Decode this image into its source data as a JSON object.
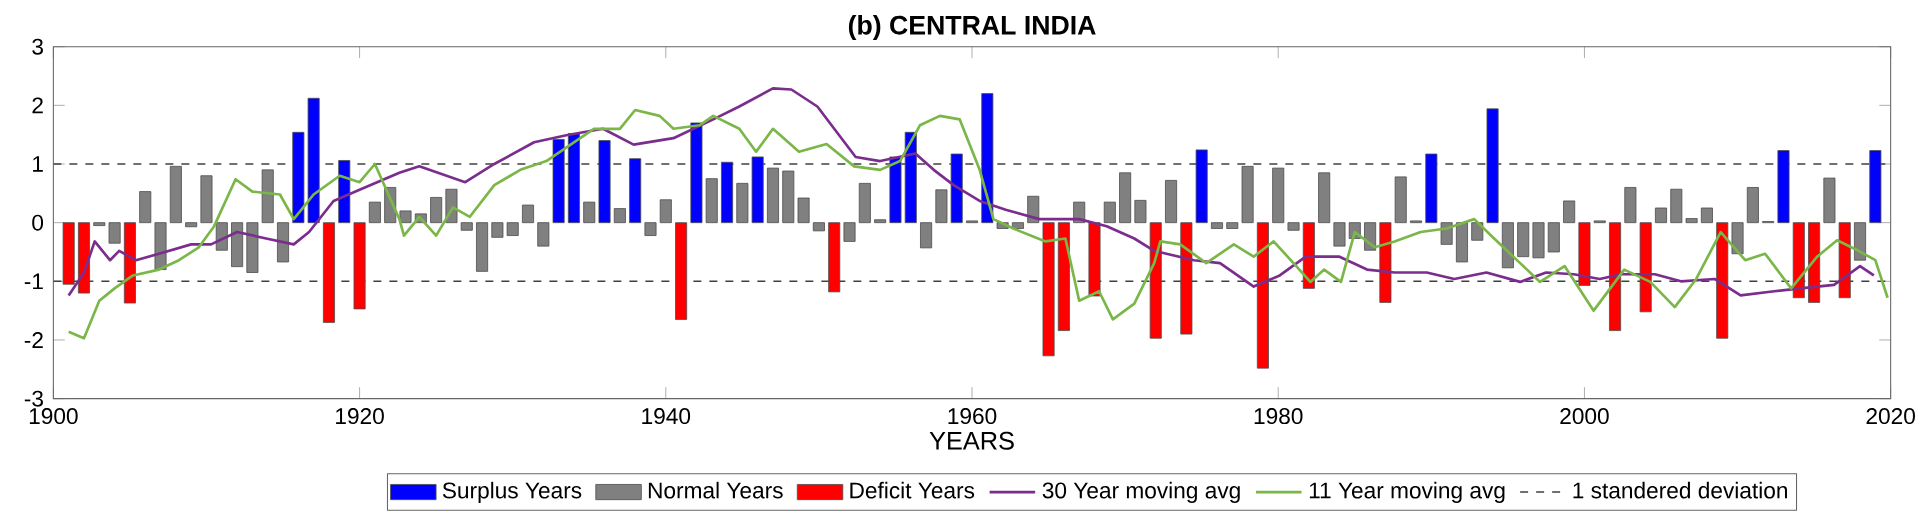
{
  "chart_data": {
    "type": "bar",
    "title": "(b) CENTRAL INDIA",
    "xlabel": "YEARS",
    "xlim": [
      1900,
      2020
    ],
    "xticks": [
      1900,
      1920,
      1940,
      1960,
      1980,
      2000,
      2020
    ],
    "ylim": [
      -3,
      3
    ],
    "yticks": [
      -3,
      -2,
      -1,
      0,
      1,
      2,
      3
    ],
    "legend": "bottom",
    "grid": false,
    "marker": "none",
    "series": [
      {
        "name": "Surplus Years",
        "color": "#0000ff",
        "x": [
          1916,
          1917,
          1919,
          1933,
          1934,
          1936,
          1938,
          1942,
          1944,
          1946,
          1955,
          1956,
          1959,
          1961,
          1975,
          1990,
          1994,
          2013,
          2019
        ],
        "values": [
          1.54,
          2.12,
          1.06,
          1.42,
          1.52,
          1.4,
          1.09,
          1.7,
          1.03,
          1.12,
          1.12,
          1.54,
          1.17,
          2.2,
          1.24,
          1.17,
          1.94,
          1.23,
          1.23
        ]
      },
      {
        "name": "Normal Years",
        "color": "#808080",
        "x": [
          1903,
          1904,
          1906,
          1907,
          1908,
          1909,
          1910,
          1911,
          1912,
          1913,
          1914,
          1915,
          1921,
          1922,
          1923,
          1924,
          1925,
          1926,
          1927,
          1928,
          1929,
          1930,
          1931,
          1932,
          1935,
          1937,
          1939,
          1940,
          1943,
          1945,
          1947,
          1948,
          1949,
          1950,
          1952,
          1953,
          1954,
          1957,
          1958,
          1960,
          1962,
          1963,
          1964,
          1967,
          1969,
          1970,
          1971,
          1973,
          1976,
          1977,
          1978,
          1980,
          1981,
          1983,
          1984,
          1985,
          1986,
          1988,
          1989,
          1991,
          1992,
          1993,
          1995,
          1996,
          1997,
          1998,
          1999,
          2001,
          2003,
          2005,
          2006,
          2007,
          2008,
          2010,
          2011,
          2012,
          2016,
          2018
        ],
        "values": [
          -0.05,
          -0.35,
          0.53,
          -0.8,
          0.96,
          -0.07,
          0.8,
          -0.47,
          -0.75,
          -0.85,
          0.9,
          -0.67,
          0.35,
          0.6,
          0.2,
          0.15,
          0.43,
          0.57,
          -0.13,
          -0.83,
          -0.25,
          -0.22,
          0.3,
          -0.4,
          0.35,
          0.24,
          -0.22,
          0.39,
          0.75,
          0.67,
          0.93,
          0.88,
          0.42,
          -0.14,
          -0.32,
          0.67,
          0.05,
          -0.43,
          0.56,
          0.03,
          -0.1,
          -0.1,
          0.45,
          0.35,
          0.35,
          0.85,
          0.38,
          0.72,
          -0.1,
          -0.1,
          0.96,
          0.93,
          -0.13,
          0.85,
          -0.4,
          -0.27,
          -0.47,
          0.78,
          0.03,
          -0.37,
          -0.67,
          -0.3,
          -0.77,
          -0.58,
          -0.6,
          -0.5,
          0.37,
          0.03,
          0.6,
          0.25,
          0.57,
          0.07,
          0.25,
          -0.53,
          0.6,
          0.02,
          0.76,
          -0.64
        ]
      },
      {
        "name": "Deficit Years",
        "color": "#ff0000",
        "x": [
          1901,
          1902,
          1905,
          1918,
          1920,
          1941,
          1951,
          1965,
          1966,
          1968,
          1972,
          1974,
          1979,
          1982,
          1987,
          2000,
          2002,
          2004,
          2009,
          2014,
          2015,
          2017
        ],
        "values": [
          -1.05,
          -1.2,
          -1.37,
          -1.7,
          -1.47,
          -1.65,
          -1.18,
          -2.27,
          -1.84,
          -1.25,
          -1.97,
          -1.9,
          -2.48,
          -1.12,
          -1.36,
          -1.07,
          -1.84,
          -1.52,
          -1.97,
          -1.28,
          -1.36,
          -1.28
        ]
      },
      {
        "name": "30 Year moving avg",
        "type": "line",
        "color": "#7b2d8e",
        "x": [
          1901,
          1902,
          1902.7,
          1903.7,
          1904.3,
          1905.4,
          1906.9,
          1909,
          1910.3,
          1912,
          1913.9,
          1915.7,
          1916.7,
          1918.3,
          1920,
          1922.6,
          1923.9,
          1926.9,
          1928.8,
          1931.4,
          1933.5,
          1935.9,
          1937.9,
          1940.5,
          1943.1,
          1944.8,
          1947,
          1948.2,
          1949.9,
          1951,
          1952.4,
          1954,
          1956.3,
          1957.5,
          1958.8,
          1960.5,
          1962.2,
          1964.4,
          1967,
          1968.8,
          1970.6,
          1971.9,
          1972.7,
          1974.5,
          1976.2,
          1978.4,
          1980.1,
          1981.8,
          1984,
          1985.8,
          1987.6,
          1989.7,
          1991.5,
          1993.6,
          1995.8,
          1997.5,
          1999.3,
          2001,
          2002.4,
          2004.6,
          2006.3,
          2008.5,
          2010.2,
          2012.4,
          2014.1,
          2016.3,
          2018,
          2018.9
        ],
        "values": [
          -1.24,
          -0.85,
          -0.32,
          -0.64,
          -0.48,
          -0.64,
          -0.53,
          -0.37,
          -0.37,
          -0.16,
          -0.27,
          -0.37,
          -0.16,
          0.37,
          0.56,
          0.85,
          0.96,
          0.69,
          1.0,
          1.37,
          1.49,
          1.6,
          1.33,
          1.44,
          1.76,
          1.98,
          2.29,
          2.27,
          1.98,
          1.6,
          1.12,
          1.05,
          1.18,
          0.9,
          0.64,
          0.37,
          0.22,
          0.06,
          0.06,
          -0.06,
          -0.27,
          -0.48,
          -0.53,
          -0.64,
          -0.69,
          -1.09,
          -0.9,
          -0.58,
          -0.58,
          -0.8,
          -0.85,
          -0.85,
          -0.96,
          -0.85,
          -1.01,
          -0.85,
          -0.88,
          -0.96,
          -0.88,
          -0.88,
          -1.0,
          -0.96,
          -1.24,
          -1.17,
          -1.12,
          -1.06,
          -0.74,
          -0.9
        ]
      },
      {
        "name": "11 Year moving avg",
        "type": "line",
        "color": "#7ab648",
        "x": [
          1901,
          1902,
          1903,
          1904,
          1905.2,
          1906.9,
          1908.2,
          1909.5,
          1910.5,
          1911.9,
          1913,
          1914.8,
          1915.7,
          1917,
          1918.7,
          1920,
          1921,
          1922.6,
          1922.9,
          1923.9,
          1925,
          1926.1,
          1927.2,
          1928.8,
          1930.5,
          1932.2,
          1934,
          1935.3,
          1937,
          1938,
          1939.6,
          1940.5,
          1942.2,
          1943.1,
          1944.8,
          1945.9,
          1947,
          1948.7,
          1950.5,
          1952.3,
          1954,
          1955.3,
          1956.6,
          1957.9,
          1959.2,
          1960.5,
          1961.4,
          1962.7,
          1964.8,
          1966.1,
          1967,
          1968.3,
          1969.2,
          1970.6,
          1971.9,
          1972.3,
          1973.6,
          1975.3,
          1977.1,
          1978.4,
          1979.7,
          1981,
          1982.1,
          1983,
          1984.1,
          1985,
          1986.3,
          1987.6,
          1989.3,
          1991,
          1992.8,
          1994.1,
          1995.8,
          1997.1,
          1998.7,
          2000.6,
          2002.6,
          2004.3,
          2005.9,
          2007.3,
          2008.9,
          2010.5,
          2011.8,
          2013.5,
          2015.2,
          2016.5,
          2017.9,
          2019,
          2019.8
        ],
        "values": [
          -1.86,
          -1.97,
          -1.33,
          -1.12,
          -0.9,
          -0.8,
          -0.64,
          -0.42,
          -0.06,
          0.74,
          0.53,
          0.48,
          0.06,
          0.48,
          0.8,
          0.69,
          1.0,
          0.06,
          -0.22,
          0.1,
          -0.22,
          0.26,
          0.1,
          0.64,
          0.9,
          1.05,
          1.37,
          1.6,
          1.6,
          1.92,
          1.82,
          1.6,
          1.66,
          1.82,
          1.6,
          1.21,
          1.6,
          1.21,
          1.34,
          0.96,
          0.9,
          1.05,
          1.66,
          1.82,
          1.76,
          0.9,
          0.06,
          -0.1,
          -0.32,
          -0.27,
          -1.33,
          -1.17,
          -1.65,
          -1.38,
          -0.69,
          -0.32,
          -0.37,
          -0.69,
          -0.37,
          -0.58,
          -0.32,
          -0.69,
          -1.01,
          -0.8,
          -1.01,
          -0.16,
          -0.42,
          -0.32,
          -0.16,
          -0.1,
          0.06,
          -0.27,
          -0.69,
          -1.01,
          -0.74,
          -1.5,
          -0.8,
          -1.01,
          -1.44,
          -0.96,
          -0.16,
          -0.64,
          -0.53,
          -1.12,
          -0.58,
          -0.3,
          -0.48,
          -0.64,
          -1.28
        ]
      }
    ],
    "ref_lines": [
      {
        "axis": "y",
        "value": 1,
        "label": "1 standered deviation",
        "color": "#404040",
        "line_style": "dashed"
      },
      {
        "axis": "y",
        "value": -1,
        "color": "#404040",
        "line_style": "dashed"
      }
    ]
  }
}
